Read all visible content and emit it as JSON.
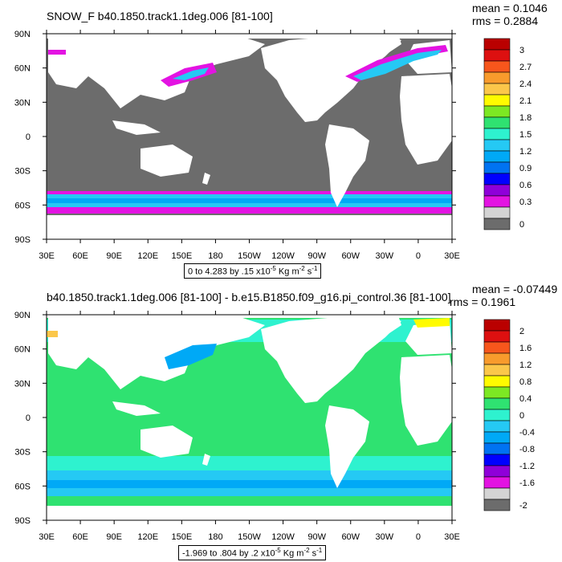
{
  "chart_data": [
    {
      "type": "map",
      "title": "SNOW_F b40.1850.track1.1deg.006 [81-100]",
      "stats": {
        "mean": "mean = 0.1046",
        "rms": "rms = 0.2884"
      },
      "range_label": {
        "text": "0 to 4.283 by .15 x10",
        "exp": "-5",
        "unit": " Kg m",
        "unit_exp": "-2",
        "unit2": " s",
        "unit2_exp": "-1"
      },
      "lon_ticks": [
        "30E",
        "60E",
        "90E",
        "120E",
        "150E",
        "180",
        "150W",
        "120W",
        "90W",
        "60W",
        "30W",
        "0",
        "30E"
      ],
      "lat_ticks": [
        "90N",
        "60N",
        "30N",
        "0",
        "30S",
        "60S",
        "90S"
      ],
      "colorbar": {
        "labels": [
          "3",
          "2.7",
          "2.4",
          "2.1",
          "1.8",
          "1.5",
          "1.2",
          "0.9",
          "0.6",
          "0.3",
          "0"
        ],
        "colors": [
          "#ba0000",
          "#dd1010",
          "#f7561c",
          "#f89b2c",
          "#fbc74a",
          "#fffb00",
          "#7de823",
          "#2fe271",
          "#2ef2cf",
          "#25c9f4",
          "#00a9f6",
          "#0073f2",
          "#0000ff",
          "#8f00d9",
          "#e313e2",
          "#d4d4d4",
          "#6c6c6c"
        ]
      }
    },
    {
      "type": "map",
      "title": "b40.1850.track1.1deg.006 [81-100] - b.e15.B1850.f09_g16.pi_control.36 [81-100]",
      "stats": {
        "mean": "mean = -0.07449",
        "rms": "rms = 0.1961"
      },
      "range_label": {
        "text": "-1.969 to .804 by .2 x10",
        "exp": "-5",
        "unit": " Kg m",
        "unit_exp": "-2",
        "unit2": " s",
        "unit2_exp": "-1"
      },
      "lon_ticks": [
        "30E",
        "60E",
        "90E",
        "120E",
        "150E",
        "180",
        "150W",
        "120W",
        "90W",
        "60W",
        "30W",
        "0",
        "30E"
      ],
      "lat_ticks": [
        "90N",
        "60N",
        "30N",
        "0",
        "30S",
        "60S",
        "90S"
      ],
      "colorbar": {
        "labels": [
          "2",
          "1.6",
          "1.2",
          "0.8",
          "0.4",
          "0",
          "-0.4",
          "-0.8",
          "-1.2",
          "-1.6",
          "-2"
        ],
        "colors": [
          "#ba0000",
          "#dd1010",
          "#f7561c",
          "#f89b2c",
          "#fbc74a",
          "#fffb00",
          "#7de823",
          "#2fe271",
          "#2ef2cf",
          "#25c9f4",
          "#00a9f6",
          "#0073f2",
          "#0000ff",
          "#8f00d9",
          "#e313e2",
          "#d4d4d4",
          "#6c6c6c"
        ]
      }
    }
  ]
}
